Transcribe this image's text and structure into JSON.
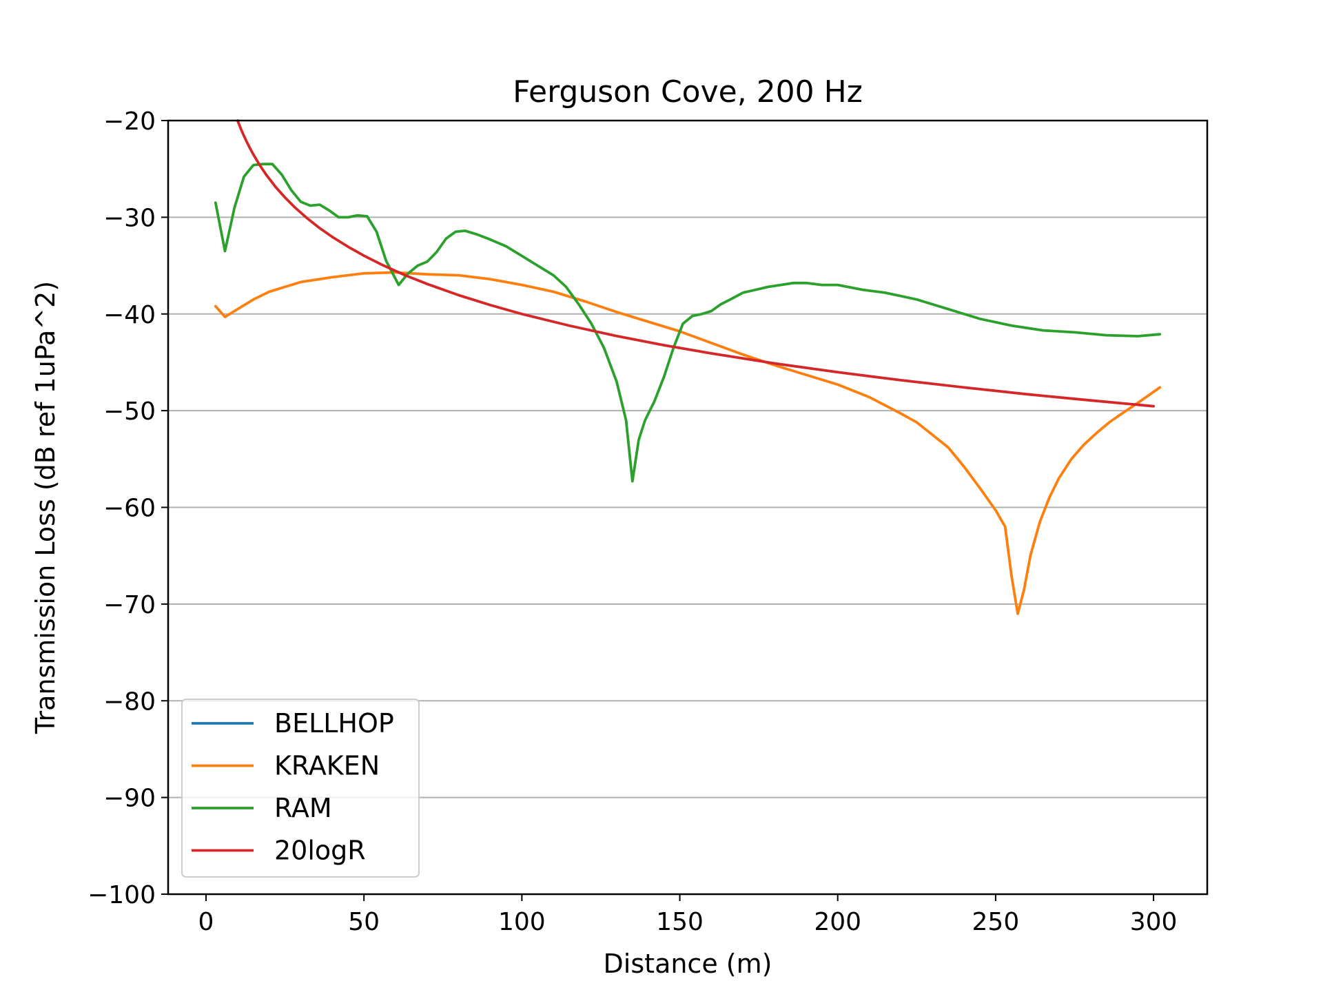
{
  "chart_data": {
    "type": "line",
    "title": "Ferguson Cove, 200 Hz",
    "xlabel": "Distance (m)",
    "ylabel": "Transmission Loss (dB ref 1uPa^2)",
    "xlim": [
      -12,
      317
    ],
    "ylim": [
      -100,
      -20
    ],
    "xticks": [
      0,
      50,
      100,
      150,
      200,
      250,
      300
    ],
    "yticks": [
      -20,
      -30,
      -40,
      -50,
      -60,
      -70,
      -80,
      -90,
      -100
    ],
    "xtick_labels": [
      "0",
      "50",
      "100",
      "150",
      "200",
      "250",
      "300"
    ],
    "ytick_labels": [
      "−20",
      "−30",
      "−40",
      "−50",
      "−60",
      "−70",
      "−80",
      "−90",
      "−100"
    ],
    "grid": "horizontal",
    "legend_position": "lower-left",
    "series": [
      {
        "name": "BELLHOP",
        "color": "#1f77b4",
        "x": [],
        "y": []
      },
      {
        "name": "KRAKEN",
        "color": "#ff7f0e",
        "x": [
          3,
          6,
          10,
          15,
          20,
          25,
          30,
          40,
          50,
          60,
          70,
          80,
          90,
          100,
          110,
          120,
          130,
          140,
          150,
          160,
          170,
          180,
          190,
          200,
          210,
          220,
          225,
          230,
          235,
          240,
          245,
          250,
          253,
          255,
          257,
          259,
          261,
          264,
          267,
          270,
          274,
          278,
          282,
          286,
          290,
          295,
          302
        ],
        "y": [
          -39.2,
          -40.3,
          -39.5,
          -38.5,
          -37.7,
          -37.2,
          -36.7,
          -36.2,
          -35.8,
          -35.7,
          -35.9,
          -36.0,
          -36.4,
          -37.0,
          -37.7,
          -38.7,
          -39.8,
          -40.8,
          -41.8,
          -43.0,
          -44.2,
          -45.3,
          -46.3,
          -47.3,
          -48.6,
          -50.3,
          -51.2,
          -52.5,
          -53.8,
          -55.8,
          -58.0,
          -60.3,
          -62.0,
          -67.0,
          -71.0,
          -68.5,
          -65.0,
          -61.5,
          -59.0,
          -57.0,
          -55.0,
          -53.5,
          -52.3,
          -51.2,
          -50.3,
          -49.2,
          -47.6
        ]
      },
      {
        "name": "RAM",
        "color": "#2ca02c",
        "x": [
          3,
          6,
          9,
          12,
          15,
          18,
          21,
          24,
          27,
          30,
          33,
          36,
          39,
          42,
          45,
          48,
          51,
          54,
          57,
          61,
          64,
          67,
          70,
          73,
          76,
          79,
          82,
          86,
          90,
          95,
          100,
          105,
          110,
          114,
          118,
          122,
          126,
          130,
          133,
          135,
          137,
          139,
          142,
          145,
          148,
          151,
          154,
          157,
          160,
          163,
          166,
          170,
          174,
          178,
          182,
          186,
          190,
          195,
          200,
          208,
          215,
          225,
          235,
          245,
          255,
          265,
          275,
          285,
          295,
          302
        ],
        "y": [
          -28.5,
          -33.5,
          -29.0,
          -25.8,
          -24.6,
          -24.5,
          -24.5,
          -25.6,
          -27.2,
          -28.4,
          -28.8,
          -28.7,
          -29.3,
          -30.0,
          -30.0,
          -29.8,
          -29.9,
          -31.5,
          -34.5,
          -37.0,
          -35.8,
          -35.0,
          -34.6,
          -33.6,
          -32.2,
          -31.5,
          -31.4,
          -31.8,
          -32.3,
          -33.0,
          -34.0,
          -35.0,
          -36.0,
          -37.2,
          -39.0,
          -41.0,
          -43.5,
          -47.0,
          -51.0,
          -57.3,
          -53.0,
          -51.0,
          -49.0,
          -46.5,
          -43.5,
          -41.0,
          -40.2,
          -40.0,
          -39.7,
          -39.0,
          -38.5,
          -37.8,
          -37.5,
          -37.2,
          -37.0,
          -36.8,
          -36.8,
          -37.0,
          -37.0,
          -37.5,
          -37.8,
          -38.5,
          -39.5,
          -40.5,
          -41.2,
          -41.7,
          -41.9,
          -42.2,
          -42.3,
          -42.1
        ]
      },
      {
        "name": "20logR",
        "color": "#d62728",
        "function": "-20*log10(x)",
        "x": [
          10,
          11,
          12,
          13,
          14,
          15,
          17,
          19,
          22,
          25,
          28,
          32,
          36,
          40,
          45,
          50,
          56,
          63,
          70,
          80,
          90,
          100,
          115,
          130,
          145,
          160,
          180,
          200,
          220,
          240,
          260,
          280,
          300
        ],
        "y": [
          -20.0,
          -20.83,
          -21.58,
          -22.28,
          -22.92,
          -23.52,
          -24.61,
          -25.58,
          -26.85,
          -27.96,
          -28.94,
          -30.1,
          -31.13,
          -32.04,
          -33.06,
          -33.98,
          -34.96,
          -35.99,
          -36.9,
          -38.06,
          -39.08,
          -40.0,
          -41.21,
          -42.28,
          -43.23,
          -44.08,
          -45.11,
          -46.02,
          -46.85,
          -47.6,
          -48.3,
          -48.94,
          -49.54
        ]
      }
    ]
  }
}
